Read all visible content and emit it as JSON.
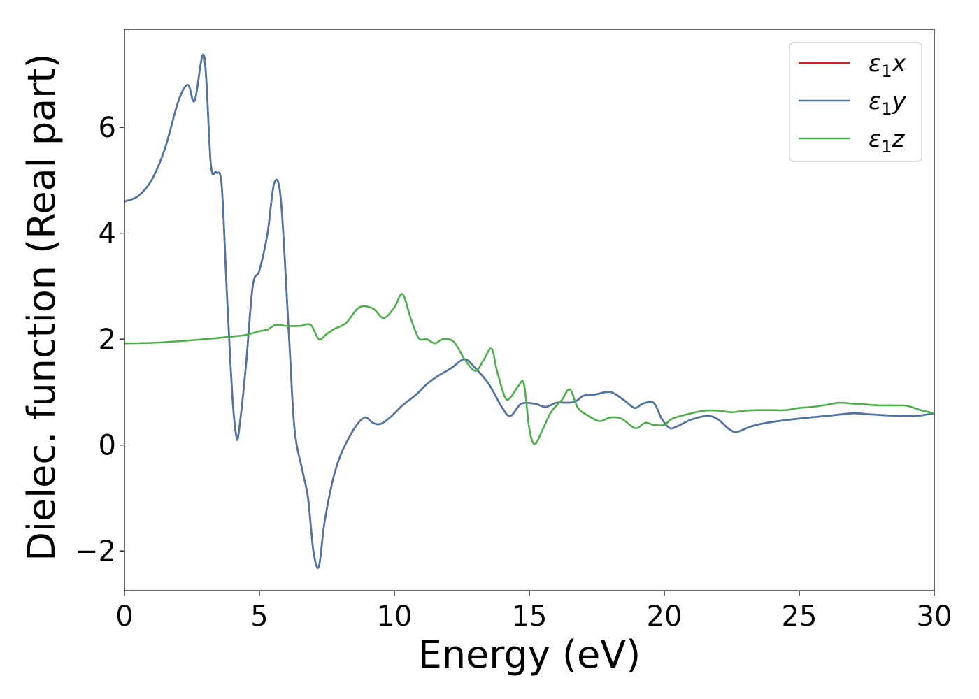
{
  "chart_data": {
    "type": "line",
    "xlabel": "Energy (eV)",
    "ylabel": "Dielec. function (Real part)",
    "xlim": [
      0,
      30
    ],
    "ylim": [
      -2.75,
      7.85
    ],
    "xticks": [
      0,
      5,
      10,
      15,
      20,
      25,
      30
    ],
    "xtick_labels": [
      "0",
      "5",
      "10",
      "15",
      "20",
      "25",
      "30"
    ],
    "yticks": [
      -2,
      0,
      2,
      4,
      6
    ],
    "ytick_labels": [
      "−2",
      "0",
      "2",
      "4",
      "6"
    ],
    "grid": false,
    "legend_position": "top-right",
    "series": [
      {
        "name": "ε₁x",
        "legend_symbol": "ε",
        "legend_subscript": "1",
        "legend_component": "x",
        "color": "#e41a1c",
        "x": [
          0,
          0.5,
          1,
          1.5,
          2,
          2.35,
          2.6,
          2.95,
          3.2,
          3.4,
          3.6,
          3.8,
          4.0,
          4.15,
          4.25,
          4.5,
          4.75,
          5.0,
          5.3,
          5.55,
          5.8,
          6.1,
          6.3,
          6.6,
          6.8,
          7.0,
          7.2,
          7.4,
          7.7,
          8.0,
          8.5,
          8.9,
          9.2,
          9.5,
          9.9,
          10.3,
          10.8,
          11.2,
          11.6,
          12.1,
          12.6,
          13.0,
          13.5,
          14.0,
          14.3,
          14.7,
          15.2,
          15.6,
          16.0,
          16.4,
          16.7,
          17.0,
          17.4,
          18.0,
          18.5,
          18.9,
          19.2,
          19.6,
          19.9,
          20.2,
          20.5,
          21.0,
          21.6,
          22.0,
          22.4,
          22.7,
          23.2,
          23.8,
          24.5,
          25.0,
          25.6,
          26.2,
          27.0,
          27.6,
          28.3,
          29.0,
          29.5,
          30.0
        ],
        "y": [
          4.6,
          4.7,
          5.0,
          5.6,
          6.5,
          6.8,
          6.5,
          7.35,
          5.3,
          5.15,
          4.9,
          2.8,
          0.9,
          0.15,
          0.3,
          1.5,
          3.0,
          3.3,
          4.0,
          4.95,
          4.6,
          2.0,
          0.3,
          -0.5,
          -1.0,
          -2.0,
          -2.3,
          -1.5,
          -0.7,
          -0.2,
          0.3,
          0.52,
          0.42,
          0.4,
          0.55,
          0.75,
          0.95,
          1.15,
          1.3,
          1.45,
          1.62,
          1.45,
          1.15,
          0.7,
          0.55,
          0.78,
          0.78,
          0.72,
          0.8,
          0.8,
          0.82,
          0.93,
          0.95,
          1.0,
          0.85,
          0.7,
          0.78,
          0.8,
          0.5,
          0.32,
          0.36,
          0.48,
          0.55,
          0.48,
          0.3,
          0.25,
          0.35,
          0.42,
          0.47,
          0.5,
          0.53,
          0.56,
          0.6,
          0.58,
          0.56,
          0.55,
          0.56,
          0.6
        ]
      },
      {
        "name": "ε₁y",
        "legend_symbol": "ε",
        "legend_subscript": "1",
        "legend_component": "y",
        "color": "#4a77aa",
        "x": [
          0,
          0.5,
          1,
          1.5,
          2,
          2.35,
          2.6,
          2.95,
          3.2,
          3.4,
          3.6,
          3.8,
          4.0,
          4.15,
          4.25,
          4.5,
          4.75,
          5.0,
          5.3,
          5.55,
          5.8,
          6.1,
          6.3,
          6.6,
          6.8,
          7.0,
          7.2,
          7.4,
          7.7,
          8.0,
          8.5,
          8.9,
          9.2,
          9.5,
          9.9,
          10.3,
          10.8,
          11.2,
          11.6,
          12.1,
          12.6,
          13.0,
          13.5,
          14.0,
          14.3,
          14.7,
          15.2,
          15.6,
          16.0,
          16.4,
          16.7,
          17.0,
          17.4,
          18.0,
          18.5,
          18.9,
          19.2,
          19.6,
          19.9,
          20.2,
          20.5,
          21.0,
          21.6,
          22.0,
          22.4,
          22.7,
          23.2,
          23.8,
          24.5,
          25.0,
          25.6,
          26.2,
          27.0,
          27.6,
          28.3,
          29.0,
          29.5,
          30.0
        ],
        "y": [
          4.6,
          4.7,
          5.0,
          5.6,
          6.5,
          6.8,
          6.5,
          7.35,
          5.3,
          5.15,
          4.9,
          2.8,
          0.9,
          0.15,
          0.3,
          1.5,
          3.0,
          3.3,
          4.0,
          4.95,
          4.6,
          2.0,
          0.3,
          -0.5,
          -1.0,
          -2.0,
          -2.3,
          -1.5,
          -0.7,
          -0.2,
          0.3,
          0.52,
          0.42,
          0.4,
          0.55,
          0.75,
          0.95,
          1.15,
          1.3,
          1.45,
          1.62,
          1.45,
          1.15,
          0.7,
          0.55,
          0.78,
          0.78,
          0.72,
          0.8,
          0.8,
          0.82,
          0.93,
          0.95,
          1.0,
          0.85,
          0.7,
          0.78,
          0.8,
          0.5,
          0.32,
          0.36,
          0.48,
          0.55,
          0.48,
          0.3,
          0.25,
          0.35,
          0.42,
          0.47,
          0.5,
          0.53,
          0.56,
          0.6,
          0.58,
          0.56,
          0.55,
          0.56,
          0.6
        ]
      },
      {
        "name": "ε₁z",
        "legend_symbol": "ε",
        "legend_subscript": "1",
        "legend_component": "z",
        "color": "#4daf4a",
        "x": [
          0,
          1,
          2,
          3,
          4,
          4.5,
          5,
          5.3,
          5.6,
          6.0,
          6.5,
          6.9,
          7.2,
          7.5,
          7.8,
          8.2,
          8.7,
          9.2,
          9.6,
          10.0,
          10.3,
          10.6,
          10.9,
          11.2,
          11.5,
          11.8,
          12.2,
          12.6,
          13.0,
          13.3,
          13.6,
          13.8,
          14.1,
          14.3,
          14.6,
          14.8,
          15.0,
          15.2,
          15.5,
          15.8,
          16.2,
          16.5,
          16.8,
          17.2,
          17.6,
          18.0,
          18.4,
          18.8,
          19.0,
          19.3,
          19.6,
          20.0,
          20.3,
          21.0,
          21.5,
          22.0,
          22.5,
          23.0,
          23.5,
          24.0,
          24.5,
          25.0,
          25.5,
          26.0,
          26.5,
          27.0,
          27.3,
          27.6,
          28.0,
          28.5,
          29.0,
          29.5,
          30.0
        ],
        "y": [
          1.92,
          1.93,
          1.96,
          2.0,
          2.05,
          2.08,
          2.15,
          2.18,
          2.27,
          2.25,
          2.25,
          2.27,
          2.0,
          2.1,
          2.2,
          2.3,
          2.6,
          2.58,
          2.4,
          2.6,
          2.85,
          2.4,
          2.02,
          2.0,
          1.92,
          2.0,
          1.95,
          1.62,
          1.4,
          1.6,
          1.82,
          1.4,
          0.9,
          0.9,
          1.12,
          1.15,
          0.3,
          0.02,
          0.3,
          0.62,
          0.85,
          1.05,
          0.7,
          0.55,
          0.45,
          0.52,
          0.5,
          0.35,
          0.32,
          0.42,
          0.38,
          0.38,
          0.5,
          0.6,
          0.65,
          0.65,
          0.62,
          0.65,
          0.66,
          0.66,
          0.66,
          0.7,
          0.72,
          0.76,
          0.8,
          0.78,
          0.78,
          0.76,
          0.75,
          0.75,
          0.74,
          0.66,
          0.6
        ]
      }
    ]
  }
}
